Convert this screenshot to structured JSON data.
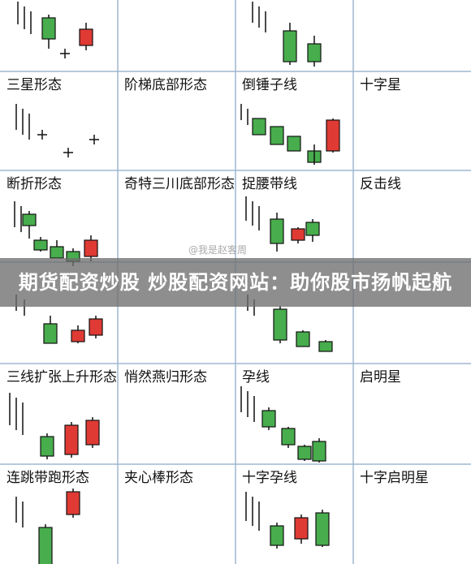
{
  "banner": {
    "text": "期货配资炒股 炒股配资网站：助你股市扬帆起航"
  },
  "watermark": {
    "text": "@我是赵客周"
  },
  "colors": {
    "up": "#e03a34",
    "down": "#47ad4d",
    "line": "#111111",
    "grid": "#9fb7d0",
    "label": "#111111"
  },
  "cards": [
    {
      "title": "",
      "pattern": "top-row-1"
    },
    {
      "title": "",
      "pattern": "top-row-2"
    },
    {
      "title": "",
      "pattern": "top-row-3"
    },
    {
      "title": "",
      "pattern": "top-row-4"
    },
    {
      "title": "三星形态",
      "pattern": "three-stars"
    },
    {
      "title": "阶梯底部形态",
      "pattern": "ladder-bottom"
    },
    {
      "title": "倒锤子线",
      "pattern": "inverted-hammer"
    },
    {
      "title": "十字星",
      "pattern": "doji-star"
    },
    {
      "title": "断折形态",
      "pattern": "broken"
    },
    {
      "title": "奇特三川底部形态",
      "pattern": "unique-three-river"
    },
    {
      "title": "捉腰带线",
      "pattern": "belt-hold"
    },
    {
      "title": "反击线",
      "pattern": "counterattack"
    },
    {
      "title": "",
      "pattern": "hidden-1"
    },
    {
      "title": "",
      "pattern": "hidden-2"
    },
    {
      "title": "",
      "pattern": "hidden-3"
    },
    {
      "title": "",
      "pattern": "hidden-4"
    },
    {
      "title": "三线扩张上升形态",
      "pattern": "three-line-expansion"
    },
    {
      "title": "悄然燕归形态",
      "pattern": "swallow-return"
    },
    {
      "title": "孕线",
      "pattern": "harami"
    },
    {
      "title": "启明星",
      "pattern": "morning-star"
    },
    {
      "title": "连跳带跑形态",
      "pattern": "gap-run"
    },
    {
      "title": "夹心棒形态",
      "pattern": "stick-sandwich"
    },
    {
      "title": "十字孕线",
      "pattern": "harami-cross"
    },
    {
      "title": "十字启明星",
      "pattern": "morning-doji-star"
    }
  ]
}
